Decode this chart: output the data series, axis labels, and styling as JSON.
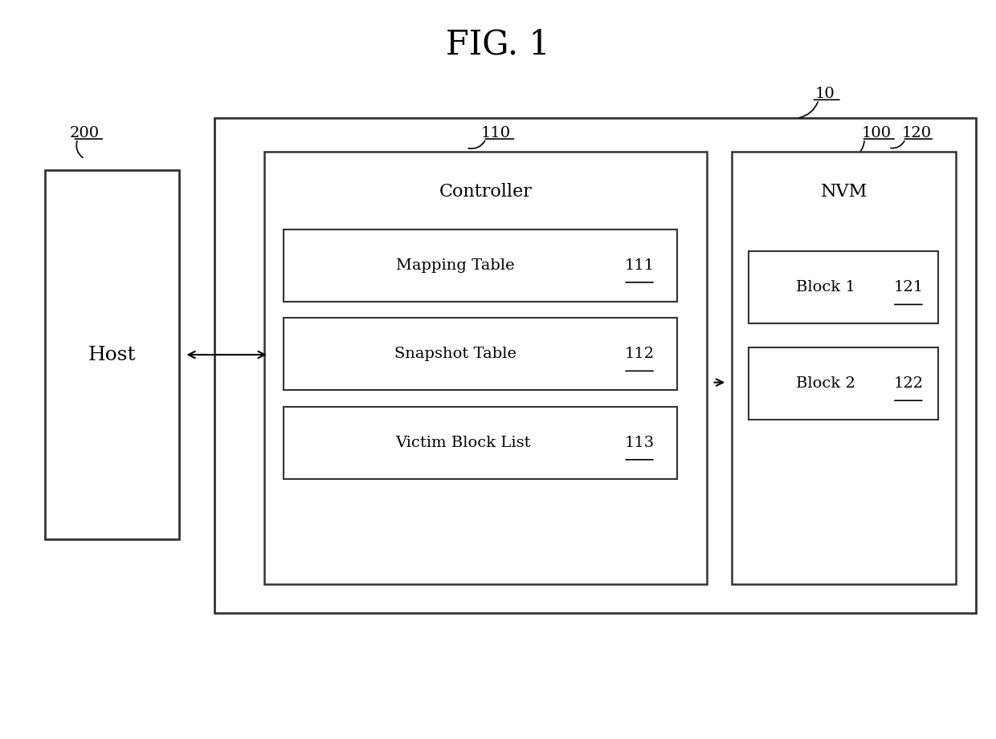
{
  "title": "FIG. 1",
  "bg_color": "#ffffff",
  "text_color": "#000000",
  "box_edge_color": "#333333",
  "fig_width": 12.4,
  "fig_height": 9.21,
  "label_10": "10",
  "label_100": "100",
  "label_110": "110",
  "label_120": "120",
  "label_200": "200",
  "host_label": "Host",
  "controller_label": "Controller",
  "nvm_label": "NVM",
  "mapping_table_label": "Mapping Table",
  "mapping_table_num": "111",
  "snapshot_table_label": "Snapshot Table",
  "snapshot_table_num": "112",
  "victim_block_list_label": "Victim Block List",
  "victim_block_list_num": "113",
  "block1_label": "Block 1",
  "block1_num": "121",
  "block2_label": "Block 2",
  "block2_num": "122"
}
